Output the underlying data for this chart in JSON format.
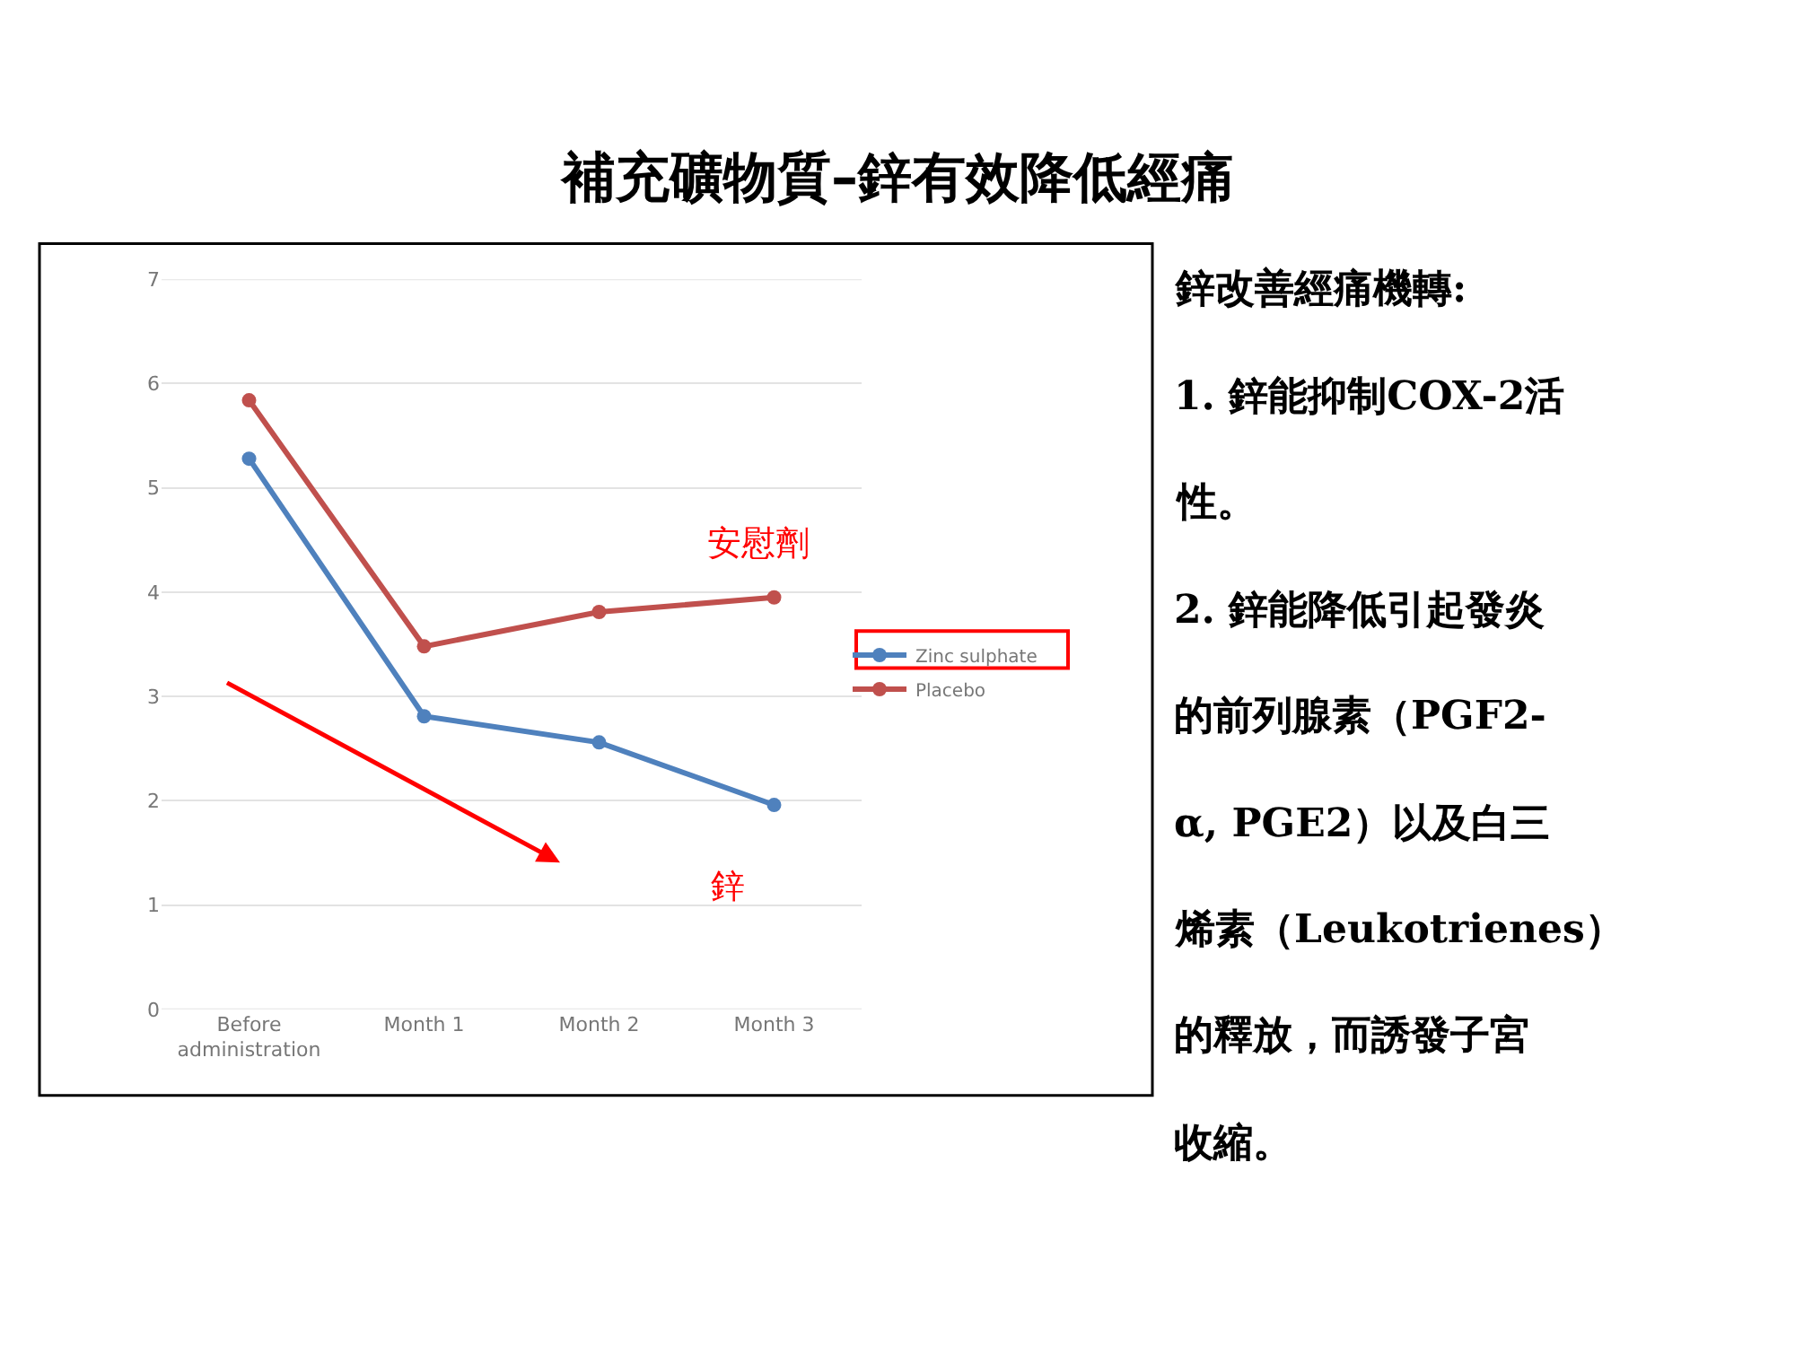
{
  "chart_data": [
    {
      "type": "line",
      "title": "補充礦物質–鋅有效降低經痛",
      "categories": [
        "Before administration",
        "Month 1",
        "Month 2",
        "Month 3"
      ],
      "series": [
        {
          "name": "Zinc sulphate",
          "color": "#4f81bd",
          "values": [
            5.28,
            2.81,
            2.56,
            1.96
          ]
        },
        {
          "name": "Placebo",
          "color": "#c0504d",
          "values": [
            5.84,
            3.48,
            3.81,
            3.95
          ]
        }
      ],
      "ylim": [
        0,
        7
      ],
      "yticks": [
        0,
        1,
        2,
        3,
        4,
        5,
        6,
        7
      ],
      "grid": "y",
      "legend": "right",
      "marker": "circle",
      "line_style": "solid",
      "annotations": [
        "安慰劑",
        "鋅"
      ]
    },
    {
      "type": "other",
      "annotations": [
        "鋅改善經痛機轉:",
        "1. 鋅能抑制COX-2活",
        "性。",
        "2. 鋅能降低引起發炎",
        "的前列腺素（PGF2-",
        "α, PGE2）以及白三",
        "烯素（Leukotrienes）",
        "的釋放，而誘發子宮",
        "收縮。"
      ]
    }
  ]
}
